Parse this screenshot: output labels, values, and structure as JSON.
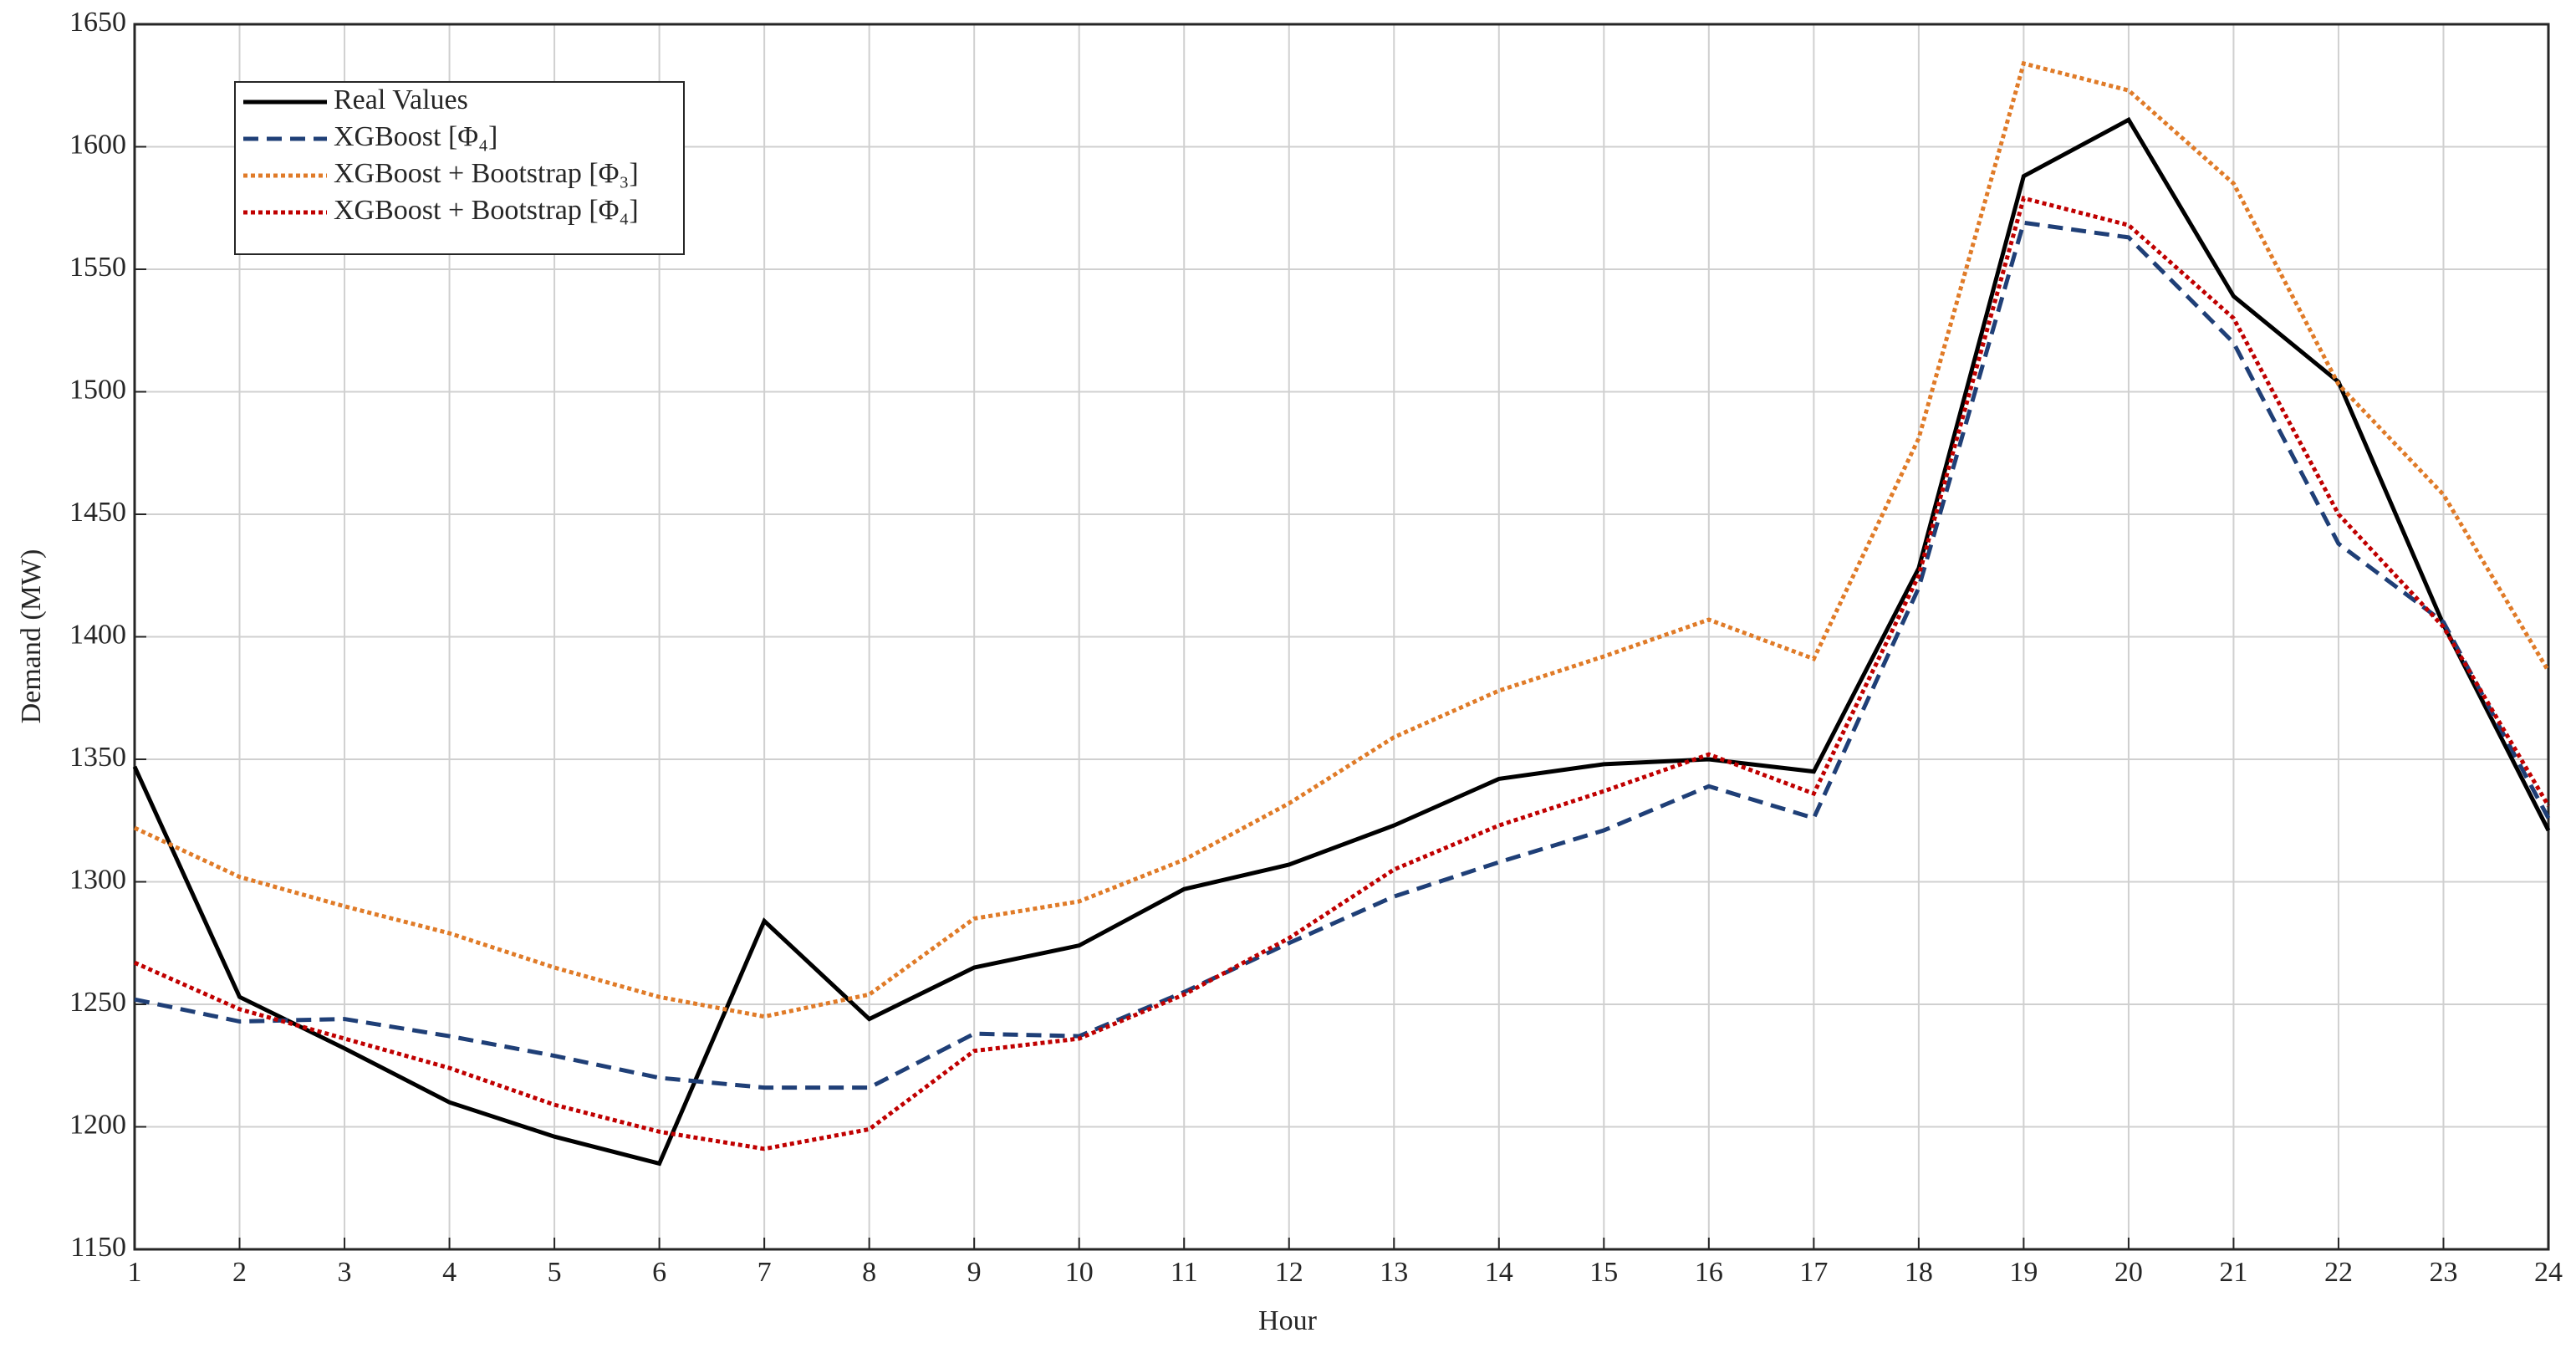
{
  "chart_data": {
    "type": "line",
    "xlabel": "Hour",
    "ylabel": "Demand (MW)",
    "x": [
      1,
      2,
      3,
      4,
      5,
      6,
      7,
      8,
      9,
      10,
      11,
      12,
      13,
      14,
      15,
      16,
      17,
      18,
      19,
      20,
      21,
      22,
      23,
      24
    ],
    "xlim": [
      1,
      24
    ],
    "xticks": [
      1,
      2,
      3,
      4,
      5,
      6,
      7,
      8,
      9,
      10,
      11,
      12,
      13,
      14,
      15,
      16,
      17,
      18,
      19,
      20,
      21,
      22,
      23,
      24
    ],
    "ylim": [
      1150,
      1650
    ],
    "yticks": [
      1150,
      1200,
      1250,
      1300,
      1350,
      1400,
      1450,
      1500,
      1550,
      1600,
      1650
    ],
    "grid": true,
    "legend": "upper left",
    "series": [
      {
        "name": "Real Values",
        "color": "#000000",
        "dash": "solid",
        "values": [
          1347,
          1253,
          1232,
          1210,
          1196,
          1185,
          1284,
          1244,
          1265,
          1274,
          1297,
          1307,
          1323,
          1342,
          1348,
          1350,
          1345,
          1428,
          1588,
          1611,
          1539,
          1504,
          1405,
          1321
        ]
      },
      {
        "name": "XGBoost [Φ₄]",
        "color": "#1f3f77",
        "dash": "dashed",
        "values": [
          1252,
          1243,
          1244,
          1237,
          1229,
          1220,
          1216,
          1216,
          1238,
          1237,
          1255,
          1275,
          1294,
          1308,
          1321,
          1339,
          1326,
          1420,
          1569,
          1563,
          1520,
          1438,
          1406,
          1326
        ]
      },
      {
        "name": "XGBoost + Bootstrap [Φ₃]",
        "color": "#e07b28",
        "dash": "dotted",
        "values": [
          1322,
          1302,
          1290,
          1279,
          1265,
          1253,
          1245,
          1254,
          1285,
          1292,
          1309,
          1332,
          1359,
          1378,
          1392,
          1407,
          1391,
          1481,
          1634,
          1623,
          1585,
          1503,
          1458,
          1386
        ]
      },
      {
        "name": "XGBoost + Bootstrap [Φ₄]",
        "color": "#c00000",
        "dash": "dotted",
        "values": [
          1267,
          1248,
          1236,
          1224,
          1209,
          1198,
          1191,
          1199,
          1231,
          1236,
          1254,
          1277,
          1305,
          1323,
          1337,
          1352,
          1336,
          1425,
          1579,
          1568,
          1530,
          1450,
          1404,
          1331
        ]
      }
    ]
  }
}
